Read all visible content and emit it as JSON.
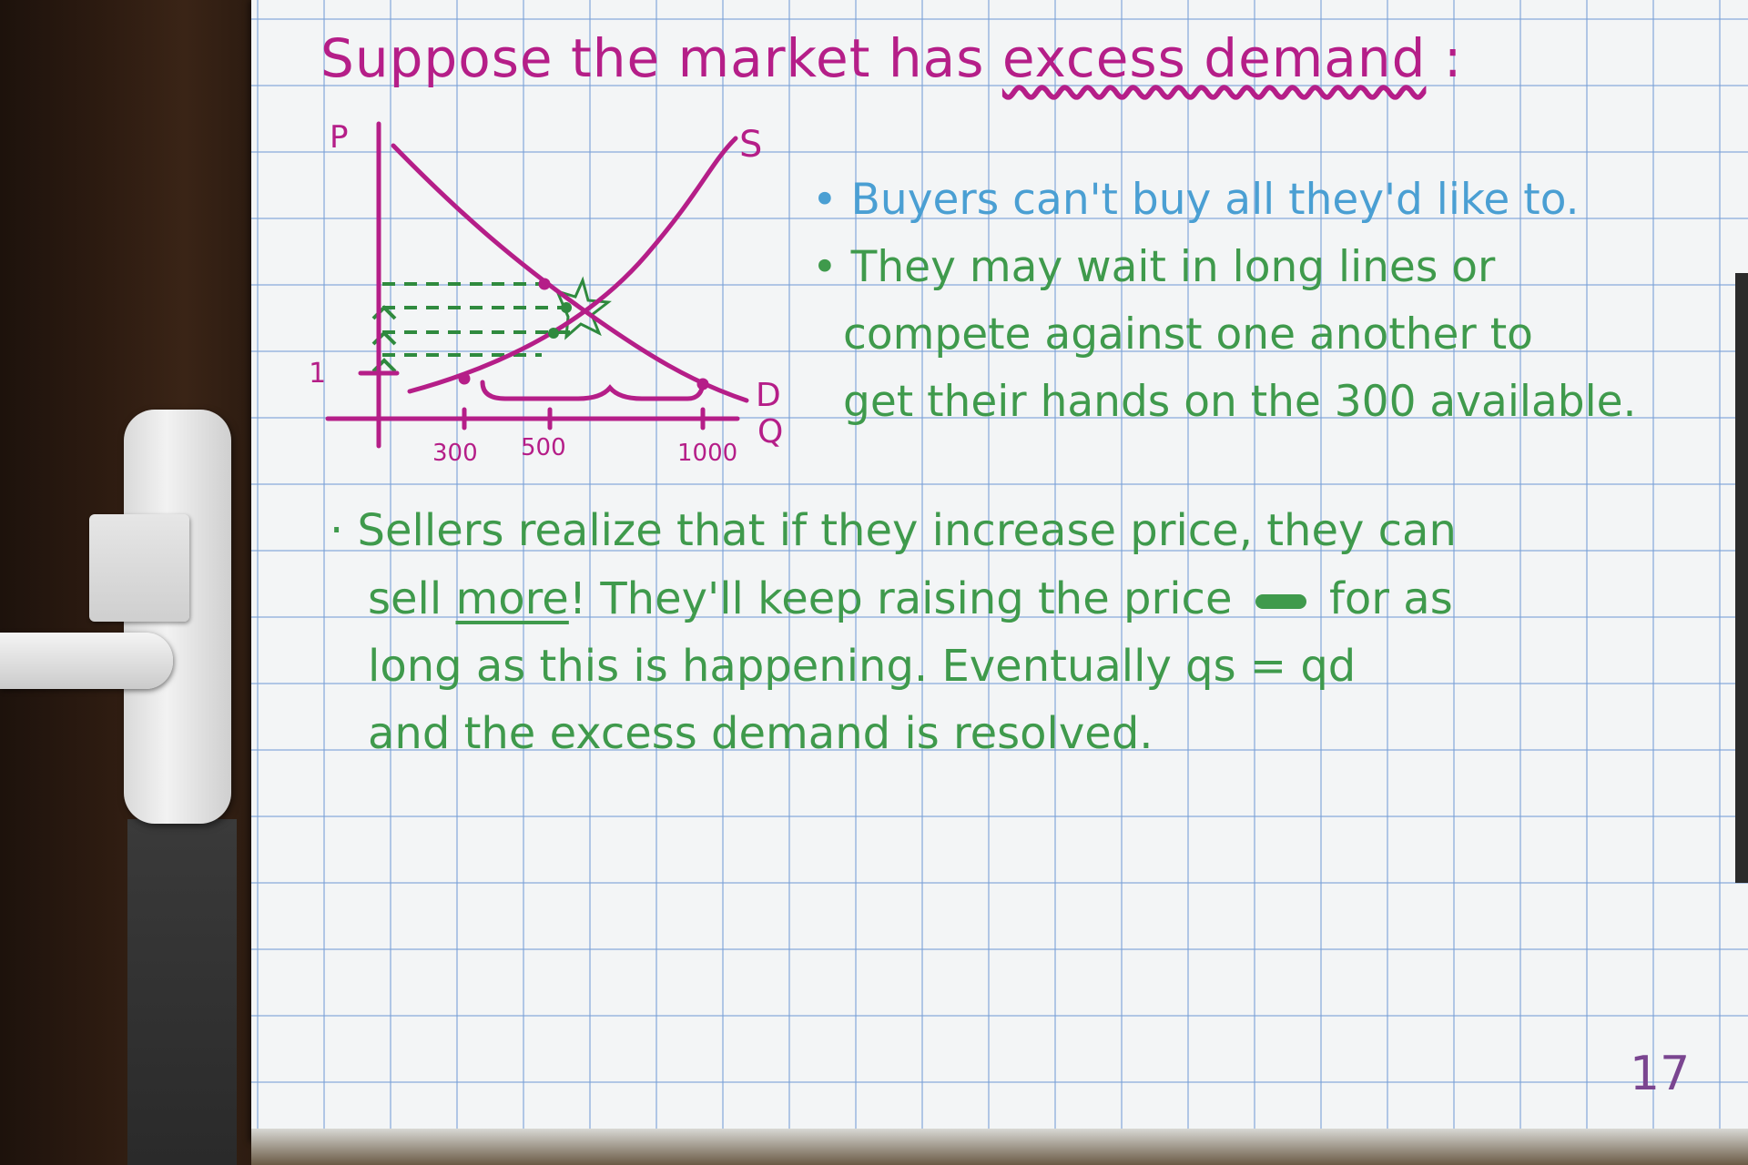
{
  "title": {
    "prefix": "Suppose the market has",
    "underlined": "excess demand",
    "suffix": ":"
  },
  "graph": {
    "y_axis_label": "P",
    "x_axis_label": "Q",
    "supply_label": "S",
    "demand_label": "D",
    "price_label": "$1",
    "ticks": [
      "300",
      "500",
      "1000"
    ]
  },
  "right_notes": {
    "bullet1": "Buyers can't buy all they'd like to.",
    "bullet2_line1": "They may wait in long lines or",
    "bullet2_line2": "compete against one another to",
    "bullet2_line3": "get their hands on the 300 available."
  },
  "body": {
    "line1": "Sellers realize that if they increase price, they can",
    "line2_pre": "sell",
    "line2_more": "more",
    "line2_post": "! They'll keep raising the price",
    "line2_end": "for as",
    "line3": "long as this is happening. Eventually qs = qd",
    "line4": "and the excess demand is resolved."
  },
  "page_number": "17",
  "colors": {
    "magenta": "#b51e88",
    "blue": "#4a9fd3",
    "green": "#3f9a4c",
    "grid": "#78a0d7"
  }
}
